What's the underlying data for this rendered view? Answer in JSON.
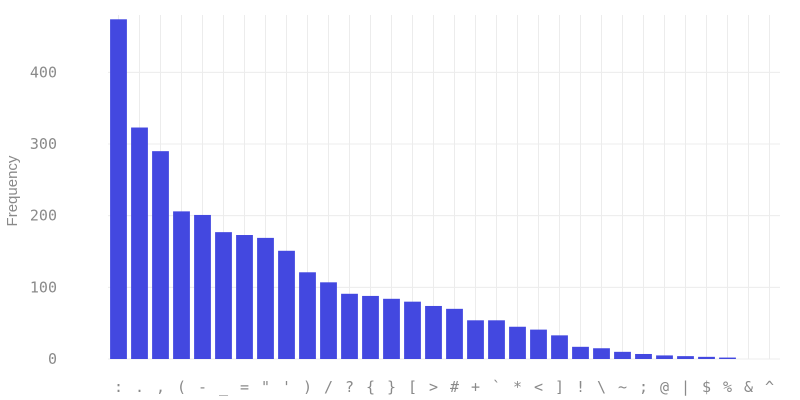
{
  "chart_data": {
    "type": "bar",
    "title": "",
    "xlabel": "",
    "ylabel": "Frequency",
    "ylim": [
      0,
      480
    ],
    "yticks": [
      0,
      100,
      200,
      300,
      400
    ],
    "grid": true,
    "bar_color": "#4348e0",
    "categories": [
      ":",
      ".",
      ",",
      "(",
      "-",
      "_",
      "=",
      "\"",
      "'",
      ")",
      "/",
      "?",
      "{",
      "}",
      "[",
      ">",
      "#",
      "+",
      "`",
      "*",
      "<",
      "]",
      "!",
      "\\",
      "~",
      ";",
      "@",
      "|",
      "$",
      "%",
      "&",
      "^"
    ],
    "values": [
      474,
      323,
      290,
      206,
      201,
      177,
      173,
      169,
      151,
      121,
      107,
      91,
      88,
      84,
      80,
      74,
      70,
      54,
      54,
      45,
      41,
      33,
      17,
      15,
      10,
      7,
      5,
      4,
      3,
      2,
      0,
      0
    ]
  }
}
